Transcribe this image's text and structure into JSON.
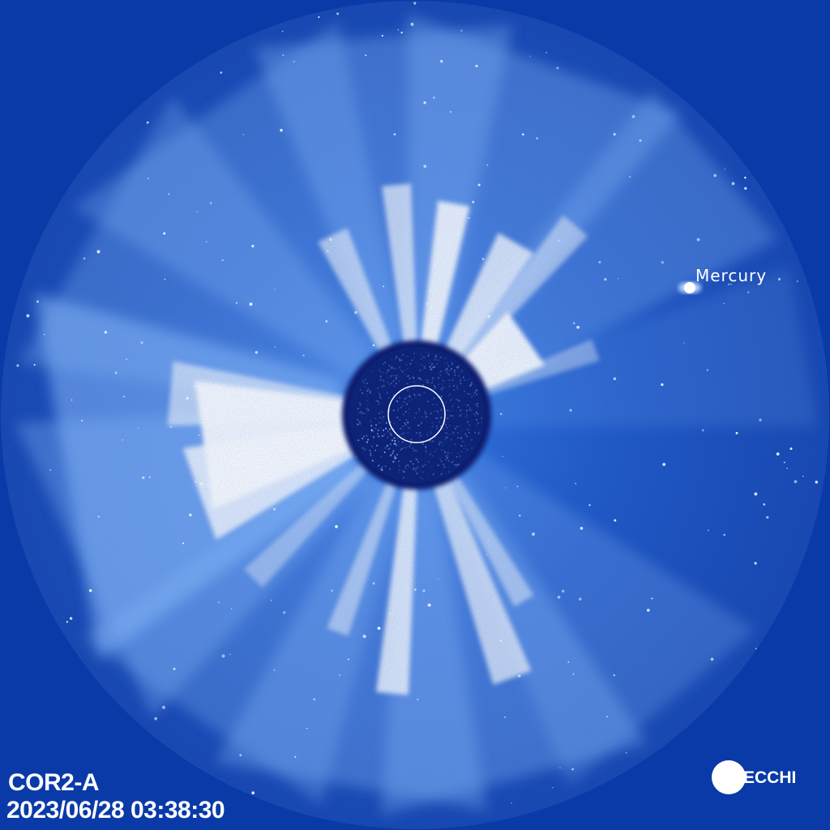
{
  "image": {
    "instrument": "COR2-A",
    "timestamp": "2023/06/28 03:38:30",
    "annotation": "Mercury",
    "logo": "SECCHI",
    "colors": {
      "background": "#0a3aa8",
      "field_dark": "#0d2e8c",
      "streamer": "#ffffff",
      "occulter": "#0a1f6e"
    }
  }
}
